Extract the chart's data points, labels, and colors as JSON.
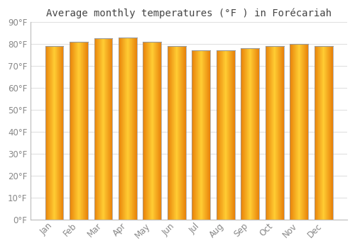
{
  "title": "Average monthly temperatures (°F ) in Forécariah",
  "months": [
    "Jan",
    "Feb",
    "Mar",
    "Apr",
    "May",
    "Jun",
    "Jul",
    "Aug",
    "Sep",
    "Oct",
    "Nov",
    "Dec"
  ],
  "values": [
    79,
    81,
    82.5,
    83,
    81,
    79,
    77,
    77,
    78,
    79,
    80,
    79
  ],
  "ylim": [
    0,
    90
  ],
  "yticks": [
    0,
    10,
    20,
    30,
    40,
    50,
    60,
    70,
    80,
    90
  ],
  "ytick_labels": [
    "0°F",
    "10°F",
    "20°F",
    "30°F",
    "40°F",
    "50°F",
    "60°F",
    "70°F",
    "80°F",
    "90°F"
  ],
  "bar_color_left": "#E8820A",
  "bar_color_center": "#FFCC33",
  "bar_color_right": "#E8820A",
  "bar_outline_color": "#999999",
  "background_color": "#ffffff",
  "grid_color": "#e0e0e0",
  "title_fontsize": 10,
  "tick_fontsize": 8.5,
  "tick_color": "#888888"
}
